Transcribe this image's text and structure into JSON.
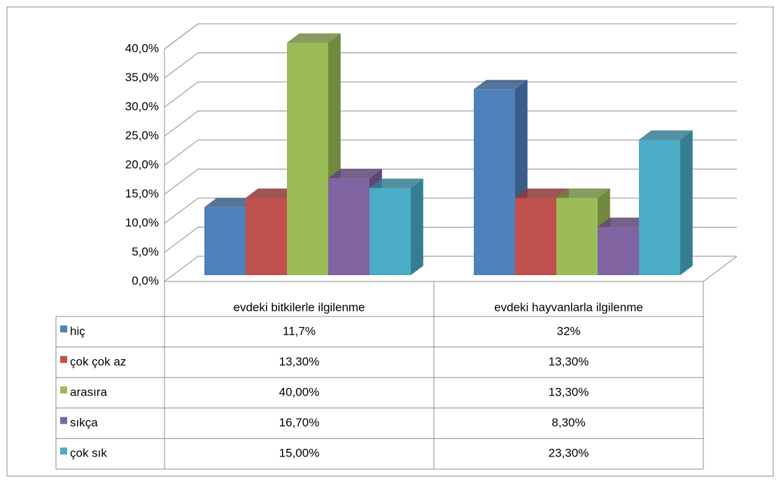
{
  "chart_data": {
    "type": "bar3d",
    "categories": [
      "evdeki bitkilerle ilgilenme",
      "evdeki hayvanlarla ilgilenme"
    ],
    "series": [
      {
        "name": "hiç",
        "color": "#4f81bd",
        "side": "#385d8a",
        "values": [
          11.7,
          32
        ],
        "value_labels": [
          "11,7%",
          "32%"
        ]
      },
      {
        "name": "çok çok az",
        "color": "#c0504d",
        "side": "#8c3836",
        "values": [
          13.3,
          13.3
        ],
        "value_labels": [
          "13,30%",
          "13,30%"
        ]
      },
      {
        "name": "arasıra",
        "color": "#9bbb59",
        "side": "#71893f",
        "values": [
          40,
          13.3
        ],
        "value_labels": [
          "40,00%",
          "13,30%"
        ]
      },
      {
        "name": "sıkça",
        "color": "#8064a2",
        "side": "#5c4776",
        "values": [
          16.7,
          8.3
        ],
        "value_labels": [
          "16,70%",
          "8,30%"
        ]
      },
      {
        "name": "çok sık",
        "color": "#4bacc6",
        "side": "#357d91",
        "values": [
          15,
          23.3
        ],
        "value_labels": [
          "15,00%",
          "23,30%"
        ]
      }
    ],
    "ylim": [
      0,
      40
    ],
    "yticks": [
      {
        "value": 0,
        "label": "0,0%"
      },
      {
        "value": 5,
        "label": "5,0%"
      },
      {
        "value": 10,
        "label": "10,0%"
      },
      {
        "value": 15,
        "label": "15,0%"
      },
      {
        "value": 20,
        "label": "20,0%"
      },
      {
        "value": 25,
        "label": "25,0%"
      },
      {
        "value": 30,
        "label": "30,0%"
      },
      {
        "value": 35,
        "label": "35,0%"
      },
      {
        "value": 40,
        "label": "40,0%"
      }
    ],
    "grid": true
  }
}
